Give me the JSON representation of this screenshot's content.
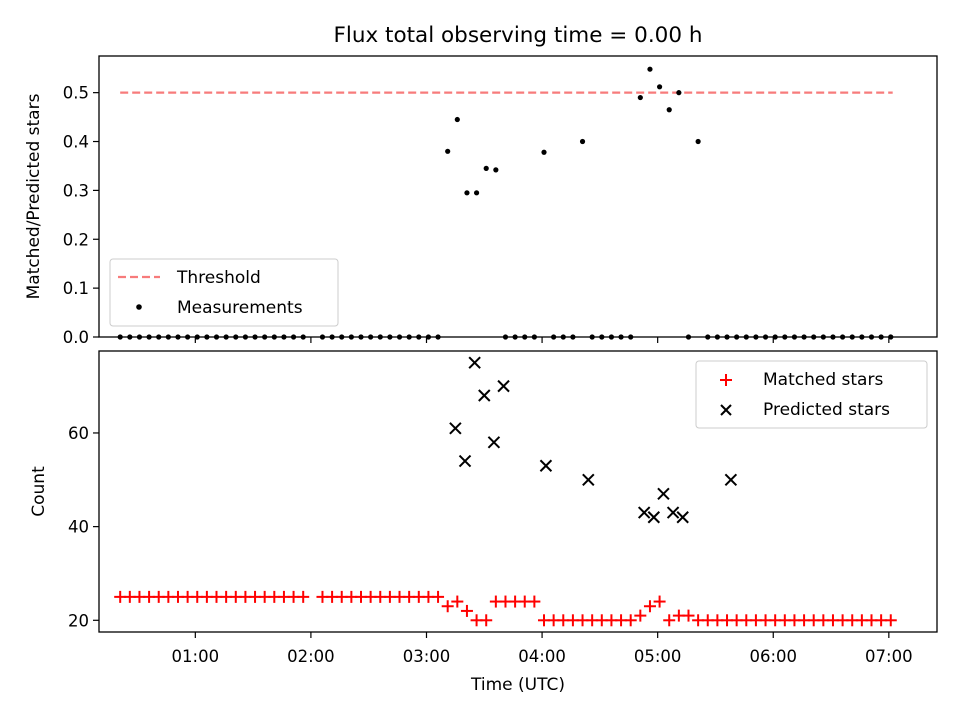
{
  "figure": {
    "title": "Flux total observing time = 0.00 h",
    "xlabel": "Time (UTC)"
  },
  "chart_data": [
    {
      "type": "scatter",
      "ylabel": "Matched/Predicted stars",
      "ylim": [
        0,
        0.575
      ],
      "yticks": [
        0.0,
        0.1,
        0.2,
        0.3,
        0.4,
        0.5
      ],
      "ytick_labels": [
        "0.0",
        "0.1",
        "0.2",
        "0.3",
        "0.4",
        "0.5"
      ],
      "xlim": [
        "00:10",
        "07:25"
      ],
      "xticks": [
        "01:00",
        "02:00",
        "03:00",
        "04:00",
        "05:00",
        "06:00",
        "07:00"
      ],
      "legend": {
        "placement": "lower-left",
        "entries": [
          "Threshold",
          "Measurements"
        ]
      },
      "threshold": {
        "name": "Threshold",
        "value": 0.5,
        "x_start": "00:21",
        "x_end": "07:02",
        "color": "#f77b7b",
        "style": "dashed"
      },
      "series": [
        {
          "name": "Measurements",
          "marker": "dot",
          "color": "#000000",
          "x": [
            "00:21",
            "00:26",
            "00:31",
            "00:36",
            "00:41",
            "00:46",
            "00:51",
            "00:56",
            "01:01",
            "01:06",
            "01:11",
            "01:16",
            "01:21",
            "01:26",
            "01:31",
            "01:36",
            "01:41",
            "01:46",
            "01:51",
            "01:56",
            "02:06",
            "02:11",
            "02:16",
            "02:21",
            "02:26",
            "02:31",
            "02:36",
            "02:41",
            "02:46",
            "02:51",
            "02:56",
            "03:01",
            "03:06",
            "03:11",
            "03:16",
            "03:21",
            "03:26",
            "03:31",
            "03:36",
            "03:41",
            "03:46",
            "03:51",
            "03:56",
            "04:01",
            "04:06",
            "04:11",
            "04:16",
            "04:21",
            "04:26",
            "04:31",
            "04:36",
            "04:41",
            "04:46",
            "04:51",
            "04:56",
            "05:01",
            "05:06",
            "05:11",
            "05:16",
            "05:21",
            "05:26",
            "05:31",
            "05:36",
            "05:41",
            "05:46",
            "05:51",
            "05:56",
            "06:01",
            "06:06",
            "06:11",
            "06:16",
            "06:21",
            "06:26",
            "06:31",
            "06:36",
            "06:41",
            "06:46",
            "06:51",
            "06:56",
            "07:01"
          ],
          "y": [
            0,
            0,
            0,
            0,
            0,
            0,
            0,
            0,
            0,
            0,
            0,
            0,
            0,
            0,
            0,
            0,
            0,
            0,
            0,
            0,
            0,
            0,
            0,
            0,
            0,
            0,
            0,
            0,
            0,
            0,
            0,
            0,
            0,
            0.38,
            0.445,
            0.295,
            0.295,
            0.345,
            0.342,
            0,
            0,
            0,
            0,
            0.378,
            0,
            0,
            0,
            0.4,
            0,
            0,
            0,
            0,
            0,
            0.49,
            0.548,
            0.512,
            0.465,
            0.5,
            0,
            0.4,
            0,
            0,
            0,
            0,
            0,
            0,
            0,
            0,
            0,
            0,
            0,
            0,
            0,
            0,
            0,
            0,
            0,
            0,
            0,
            0
          ]
        }
      ]
    },
    {
      "type": "scatter",
      "ylabel": "Count",
      "ylim": [
        17.5,
        77.5
      ],
      "yticks": [
        20,
        40,
        60
      ],
      "ytick_labels": [
        "20",
        "40",
        "60"
      ],
      "xlim": [
        "00:10",
        "07:25"
      ],
      "xticks": [
        "01:00",
        "02:00",
        "03:00",
        "04:00",
        "05:00",
        "06:00",
        "07:00"
      ],
      "xtick_labels": [
        "01:00",
        "02:00",
        "03:00",
        "04:00",
        "05:00",
        "06:00",
        "07:00"
      ],
      "legend": {
        "placement": "upper-right",
        "entries": [
          "Matched stars",
          "Predicted stars"
        ]
      },
      "series": [
        {
          "name": "Matched stars",
          "marker": "plus",
          "color": "#ff0000",
          "x": [
            "00:21",
            "00:26",
            "00:31",
            "00:36",
            "00:41",
            "00:46",
            "00:51",
            "00:56",
            "01:01",
            "01:06",
            "01:11",
            "01:16",
            "01:21",
            "01:26",
            "01:31",
            "01:36",
            "01:41",
            "01:46",
            "01:51",
            "01:56",
            "02:06",
            "02:11",
            "02:16",
            "02:21",
            "02:26",
            "02:31",
            "02:36",
            "02:41",
            "02:46",
            "02:51",
            "02:56",
            "03:01",
            "03:06",
            "03:11",
            "03:16",
            "03:21",
            "03:26",
            "03:31",
            "03:36",
            "03:41",
            "03:46",
            "03:51",
            "03:56",
            "04:01",
            "04:06",
            "04:11",
            "04:16",
            "04:21",
            "04:26",
            "04:31",
            "04:36",
            "04:41",
            "04:46",
            "04:51",
            "04:56",
            "05:01",
            "05:06",
            "05:11",
            "05:16",
            "05:21",
            "05:26",
            "05:31",
            "05:36",
            "05:41",
            "05:46",
            "05:51",
            "05:56",
            "06:01",
            "06:06",
            "06:11",
            "06:16",
            "06:21",
            "06:26",
            "06:31",
            "06:36",
            "06:41",
            "06:46",
            "06:51",
            "06:56",
            "07:01"
          ],
          "y": [
            25,
            25,
            25,
            25,
            25,
            25,
            25,
            25,
            25,
            25,
            25,
            25,
            25,
            25,
            25,
            25,
            25,
            25,
            25,
            25,
            25,
            25,
            25,
            25,
            25,
            25,
            25,
            25,
            25,
            25,
            25,
            25,
            25,
            23,
            24,
            22,
            20,
            20,
            24,
            24,
            24,
            24,
            24,
            20,
            20,
            20,
            20,
            20,
            20,
            20,
            20,
            20,
            20,
            21,
            23,
            24,
            20,
            21,
            21,
            20,
            20,
            20,
            20,
            20,
            20,
            20,
            20,
            20,
            20,
            20,
            20,
            20,
            20,
            20,
            20,
            20,
            20,
            20,
            20,
            20
          ]
        },
        {
          "name": "Predicted stars",
          "marker": "x",
          "color": "#000000",
          "x": [
            "03:15",
            "03:20",
            "03:25",
            "03:30",
            "03:35",
            "03:40",
            "04:02",
            "04:24",
            "04:53",
            "04:58",
            "05:03",
            "05:08",
            "05:13",
            "05:38"
          ],
          "y": [
            61,
            54,
            75,
            68,
            58,
            70,
            53,
            50,
            43,
            42,
            47,
            43,
            42,
            50
          ]
        }
      ]
    }
  ]
}
